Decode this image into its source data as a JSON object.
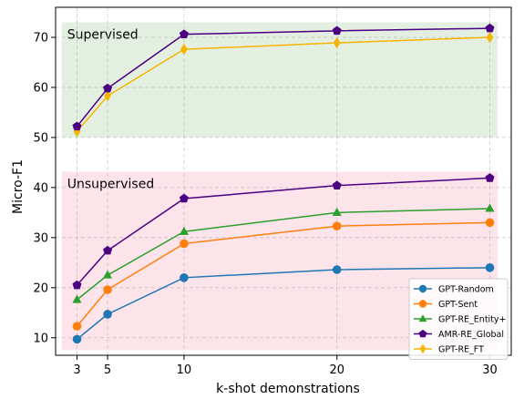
{
  "chart_data": {
    "type": "line",
    "xlabel": "k-shot demonstrations",
    "ylabel": "Micro-F1",
    "x": [
      3,
      5,
      10,
      20,
      30
    ],
    "xticks": [
      3,
      5,
      10,
      20,
      30
    ],
    "yticks": [
      10,
      20,
      30,
      40,
      50,
      60,
      70
    ],
    "xlim": [
      1.6,
      31.4
    ],
    "ylim": [
      6.5,
      76
    ],
    "grid": true,
    "legend_position": "lower-right",
    "regions": [
      {
        "label": "Supervised",
        "y_range": [
          50,
          73
        ],
        "x_range": [
          2,
          30.5
        ],
        "color": "#e3efe1"
      },
      {
        "label": "Unsupervised",
        "y_range": [
          7.5,
          43.2
        ],
        "x_range": [
          2,
          30.5
        ],
        "color": "#fce4ea"
      }
    ],
    "series": [
      {
        "name": "GPT-Random",
        "color": "#1f77b4",
        "marker": "circle",
        "values": [
          9.7,
          14.7,
          22.0,
          23.6,
          24.0
        ]
      },
      {
        "name": "GPT-Sent",
        "color": "#ff7f0e",
        "marker": "circle",
        "values": [
          12.3,
          19.6,
          28.8,
          32.3,
          33.0
        ]
      },
      {
        "name": "GPT-RE_Entity+",
        "color": "#2ca02c",
        "marker": "triangle",
        "values": [
          17.6,
          22.5,
          31.2,
          35.0,
          35.8
        ]
      },
      {
        "name": "AMR-RE_Global",
        "color": "#4b0082",
        "marker": "pentagon",
        "values": [
          20.5,
          27.4,
          37.8,
          40.4,
          41.9
        ]
      },
      {
        "name": "GPT-RE_FT",
        "color": "#f5b400",
        "marker": "diamond",
        "values": [
          51.2,
          58.3,
          67.6,
          68.9,
          70.0
        ]
      },
      {
        "name": "",
        "color": "#4b0082",
        "marker": "pentagon",
        "values": [
          52.2,
          59.8,
          70.6,
          71.3,
          71.8
        ]
      }
    ]
  }
}
